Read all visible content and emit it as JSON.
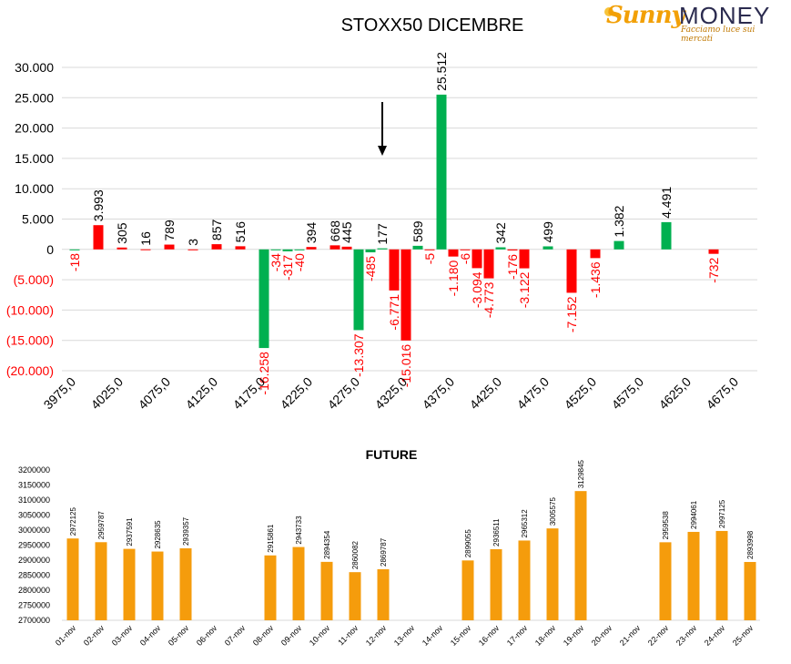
{
  "logo": {
    "sunny": "Sunny",
    "money": "MONEY",
    "tagline": "Facciamo luce sui mercati"
  },
  "colors": {
    "positive": "#00b050",
    "negative": "#ff0000",
    "future": "#f59c0c",
    "text": "#000000"
  },
  "chart_data": [
    {
      "type": "bar",
      "title": "STOXX50 DICEMBRE",
      "ylim": [
        -20000,
        30000
      ],
      "yticks": [
        "30.000",
        "25.000",
        "20.000",
        "15.000",
        "10.000",
        "5.000",
        "0",
        "(5.000)",
        "(10.000)",
        "(15.000)",
        "(20.000)"
      ],
      "xtick_labels": [
        "3975,0",
        "4025,0",
        "4075,0",
        "4125,0",
        "4175,0",
        "4225,0",
        "4275,0",
        "4325,0",
        "4375,0",
        "4425,0",
        "4475,0",
        "4525,0",
        "4575,0",
        "4625,0",
        "4675,0"
      ],
      "grid": true,
      "arrow_strike": 4300,
      "bars": [
        {
          "strike": 3975,
          "value": -18,
          "label": "-18"
        },
        {
          "strike": 4000,
          "value": 3993,
          "label": "3.993"
        },
        {
          "strike": 4025,
          "value": 305,
          "label": "305"
        },
        {
          "strike": 4050,
          "value": 16,
          "label": "16"
        },
        {
          "strike": 4075,
          "value": 789,
          "label": "789"
        },
        {
          "strike": 4100,
          "value": 3,
          "label": "3"
        },
        {
          "strike": 4125,
          "value": 857,
          "label": "857"
        },
        {
          "strike": 4150,
          "value": 516,
          "label": "516"
        },
        {
          "strike": 4175,
          "value": -16258,
          "label": "-16.258"
        },
        {
          "strike": 4187.5,
          "value": -34,
          "label": "-34"
        },
        {
          "strike": 4200,
          "value": -317,
          "label": "-317"
        },
        {
          "strike": 4212.5,
          "value": -40,
          "label": "-40"
        },
        {
          "strike": 4225,
          "value": 394,
          "label": "394"
        },
        {
          "strike": 4250,
          "value": 668,
          "label": "668"
        },
        {
          "strike": 4262.5,
          "value": 445,
          "label": "445"
        },
        {
          "strike": 4275,
          "value": -13307,
          "label": "-13.307"
        },
        {
          "strike": 4287.5,
          "value": -485,
          "label": "-485"
        },
        {
          "strike": 4300,
          "value": 177,
          "label": "177"
        },
        {
          "strike": 4312.5,
          "value": -6771,
          "label": "-6.771"
        },
        {
          "strike": 4325,
          "value": -15016,
          "label": "-15.016"
        },
        {
          "strike": 4337.5,
          "value": 589,
          "label": "589"
        },
        {
          "strike": 4350,
          "value": -5,
          "label": "-5"
        },
        {
          "strike": 4362.5,
          "value": 25512,
          "label": "25.512"
        },
        {
          "strike": 4375,
          "value": -1180,
          "label": "-1.180"
        },
        {
          "strike": 4387.5,
          "value": -6,
          "label": "-6"
        },
        {
          "strike": 4400,
          "value": -3094,
          "label": "-3.094"
        },
        {
          "strike": 4412.5,
          "value": -4773,
          "label": "-4.773"
        },
        {
          "strike": 4425,
          "value": 342,
          "label": "342"
        },
        {
          "strike": 4437.5,
          "value": -176,
          "label": "-176"
        },
        {
          "strike": 4450,
          "value": -3122,
          "label": "-3.122"
        },
        {
          "strike": 4475,
          "value": 499,
          "label": "499"
        },
        {
          "strike": 4500,
          "value": -7152,
          "label": "-7.152"
        },
        {
          "strike": 4525,
          "value": -1436,
          "label": "-1.436"
        },
        {
          "strike": 4550,
          "value": 1382,
          "label": "1.382"
        },
        {
          "strike": 4600,
          "value": 4491,
          "label": "4.491"
        },
        {
          "strike": 4650,
          "value": -732,
          "label": "-732"
        }
      ]
    },
    {
      "type": "bar",
      "title": "FUTURE",
      "ylim": [
        2700000,
        3200000
      ],
      "yticks": [
        "3200000",
        "3150000",
        "3100000",
        "3050000",
        "3000000",
        "2950000",
        "2900000",
        "2850000",
        "2800000",
        "2750000",
        "2700000"
      ],
      "categories": [
        "01-nov",
        "02-nov",
        "03-nov",
        "04-nov",
        "05-nov",
        "06-nov",
        "07-nov",
        "08-nov",
        "09-nov",
        "10-nov",
        "11-nov",
        "12-nov",
        "13-nov",
        "14-nov",
        "15-nov",
        "16-nov",
        "17-nov",
        "18-nov",
        "19-nov",
        "20-nov",
        "21-nov",
        "22-nov",
        "23-nov",
        "24-nov",
        "25-nov"
      ],
      "values": [
        2972125,
        2959787,
        2937591,
        2928635,
        2939357,
        null,
        null,
        2915861,
        2943733,
        2894354,
        2860082,
        2869787,
        null,
        null,
        2899055,
        2936511,
        2965312,
        3005575,
        3129845,
        null,
        null,
        2959538,
        2994061,
        2997125,
        2893998
      ]
    }
  ]
}
